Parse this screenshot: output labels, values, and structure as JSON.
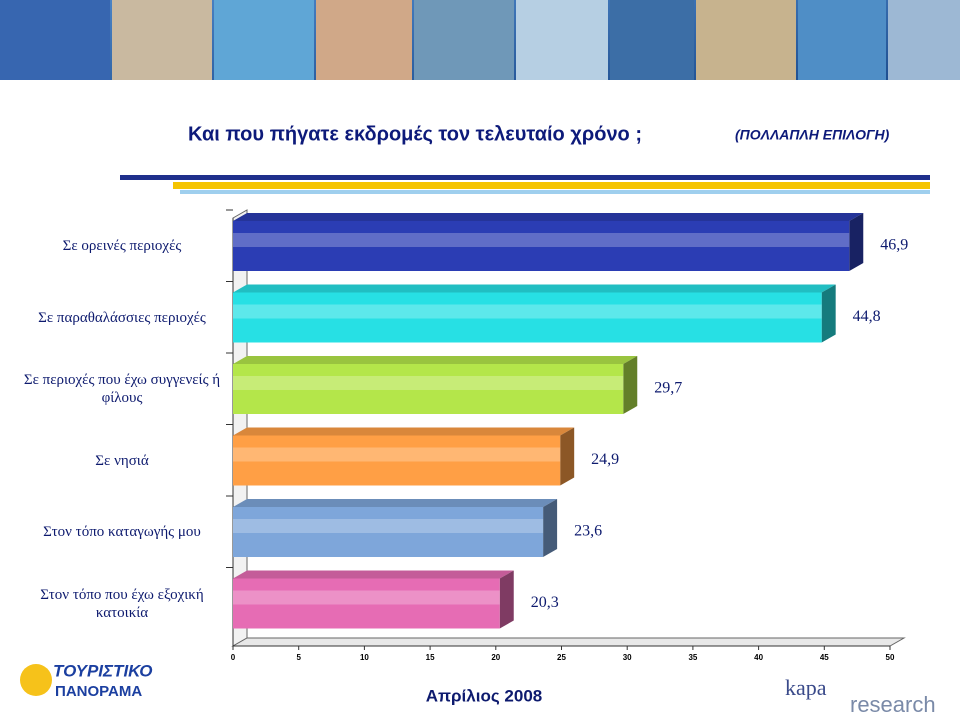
{
  "chart_data": {
    "type": "hbar3d",
    "title": "Και που πήγατε εκδρομές τον τελευταίο χρόνο ;",
    "subtitle": "(ΠΟΛΛΑΠΛΗ ΕΠΙΛΟΓΗ)",
    "categories": [
      "Σε ορεινές περιοχές",
      "Σε παραθαλάσσιες περιοχές",
      "Σε περιοχές που έχω συγγενείς ή φίλους",
      "Σε νησιά",
      "Στον τόπο καταγωγής μου",
      "Στον τόπο που έχω εξοχική κατοικία"
    ],
    "values": [
      46.9,
      44.8,
      29.7,
      24.9,
      23.6,
      20.3
    ],
    "value_labels": [
      "46,9",
      "44,8",
      "29,7",
      "24,9",
      "23,6",
      "20,3"
    ],
    "colors": [
      "#2b3db4",
      "#27e0e4",
      "#b4e64a",
      "#ff9f45",
      "#7ea6da",
      "#e66cb4"
    ],
    "xlim": [
      0,
      50
    ],
    "xticks": [
      0,
      5,
      10,
      15,
      20,
      25,
      30,
      35,
      40,
      45,
      50
    ]
  },
  "footer": {
    "left_logo": [
      "ΤΟΥΡΙΣΤΙΚΟ",
      "ΠΑΝΟΡΑΜΑ"
    ],
    "date": "Απρίλιος 2008",
    "right_logo": [
      "kapa",
      "research"
    ]
  }
}
